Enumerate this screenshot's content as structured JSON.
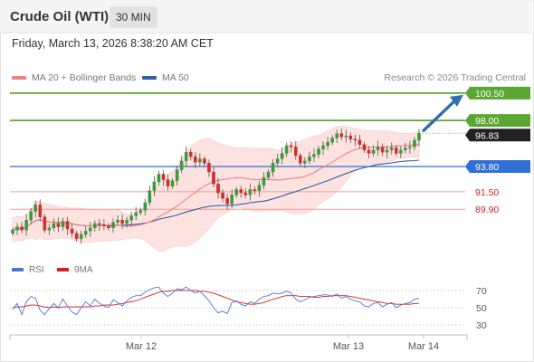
{
  "header": {
    "instrument": "Crude Oil (WTI)",
    "interval": "30 MIN"
  },
  "timestamp": "Friday, March 13, 2026 8:38:20 AM CET",
  "legend": {
    "ma20_label": "MA 20 + Bollinger Bands",
    "ma50_label": "MA 50",
    "credit": "Research © 2026 Trading Central"
  },
  "rsi_legend": {
    "rsi_label": "RSI",
    "ma_label": "9MA"
  },
  "colors": {
    "resistance": "#5aa832",
    "support": "#2f6fd6",
    "secondary_support": "#f29a9a",
    "ma20": "#f08080",
    "ma50": "#2e5fa8",
    "bollinger_fill": "#fde3e0",
    "candle_up": "#3c9a3c",
    "candle_down": "#d12f2f",
    "rsi_line": "#4a78d8",
    "rsi_ma": "#d42020",
    "arrow": "#2f6fb3",
    "current_price": "#222222"
  },
  "chart_data": {
    "type": "candlestick",
    "instrument": "Crude Oil (WTI)",
    "interval": "30 MIN",
    "x_tick_labels": [
      "Mar 12",
      "Mar 13",
      "Mar 14"
    ],
    "current_price": 96.83,
    "levels": [
      {
        "value": 100.5,
        "label": "100.50",
        "kind": "resistance"
      },
      {
        "value": 98.0,
        "label": "98.00",
        "kind": "resistance"
      },
      {
        "value": 93.8,
        "label": "93.80",
        "kind": "support"
      },
      {
        "value": 91.5,
        "label": "91.50",
        "kind": "secondary_support"
      },
      {
        "value": 89.9,
        "label": "89.90",
        "kind": "secondary_support"
      }
    ],
    "closes": [
      88.0,
      88.3,
      88.0,
      88.9,
      89.7,
      90.3,
      89.2,
      88.0,
      88.2,
      88.6,
      88.3,
      88.8,
      88.1,
      87.7,
      87.2,
      87.6,
      87.9,
      88.2,
      88.6,
      88.5,
      88.4,
      88.2,
      88.7,
      88.9,
      88.6,
      88.9,
      89.3,
      89.6,
      89.8,
      90.5,
      91.6,
      92.4,
      93.1,
      92.6,
      92.0,
      92.5,
      93.5,
      94.3,
      95.1,
      94.7,
      94.2,
      94.5,
      94.1,
      93.3,
      92.2,
      91.4,
      90.9,
      90.4,
      91.2,
      91.7,
      91.4,
      91.2,
      91.7,
      91.6,
      92.1,
      92.8,
      93.3,
      94.1,
      94.5,
      95.0,
      95.7,
      95.6,
      94.8,
      94.1,
      94.3,
      94.7,
      94.9,
      95.4,
      95.7,
      96.0,
      96.4,
      96.8,
      96.5,
      96.6,
      96.3,
      96.2,
      95.8,
      95.3,
      95.0,
      95.3,
      95.6,
      95.1,
      95.3,
      95.5,
      95.0,
      95.3,
      95.5,
      95.6,
      96.2,
      96.83
    ],
    "ylim": [
      86.2,
      100.9
    ],
    "rsi": {
      "levels": [
        30,
        50,
        70
      ],
      "level_labels": [
        "70",
        "50",
        "30"
      ],
      "rsi": [
        48,
        55,
        42,
        57,
        63,
        61,
        47,
        42,
        49,
        55,
        50,
        60,
        52,
        45,
        42,
        50,
        57,
        52,
        60,
        55,
        52,
        50,
        59,
        56,
        52,
        58,
        62,
        64,
        64,
        68,
        71,
        73,
        74,
        67,
        63,
        67,
        72,
        71,
        74,
        70,
        67,
        69,
        64,
        58,
        50,
        44,
        46,
        43,
        56,
        58,
        54,
        52,
        57,
        55,
        60,
        63,
        64,
        67,
        66,
        67,
        69,
        67,
        60,
        57,
        59,
        62,
        63,
        64,
        65,
        65,
        63,
        66,
        61,
        63,
        60,
        58,
        57,
        52,
        51,
        55,
        56,
        51,
        54,
        56,
        50,
        53,
        55,
        56,
        60,
        61
      ],
      "ma9": [
        50,
        51,
        51,
        52,
        53,
        53,
        52,
        51,
        50,
        51,
        50,
        51,
        51,
        51,
        51,
        51,
        51,
        51,
        52,
        52,
        53,
        53,
        53,
        54,
        55,
        56,
        57,
        58,
        60,
        62,
        64,
        66,
        68,
        69,
        69,
        70,
        70,
        70,
        70,
        70,
        70,
        69,
        69,
        68,
        67,
        65,
        63,
        61,
        59,
        57,
        56,
        55,
        54,
        54,
        55,
        56,
        58,
        60,
        61,
        63,
        64,
        64,
        64,
        63,
        63,
        63,
        62,
        62,
        63,
        63,
        64,
        64,
        64,
        64,
        63,
        62,
        61,
        60,
        59,
        58,
        57,
        56,
        55,
        55,
        54,
        54,
        54,
        54,
        55,
        55
      ]
    }
  }
}
